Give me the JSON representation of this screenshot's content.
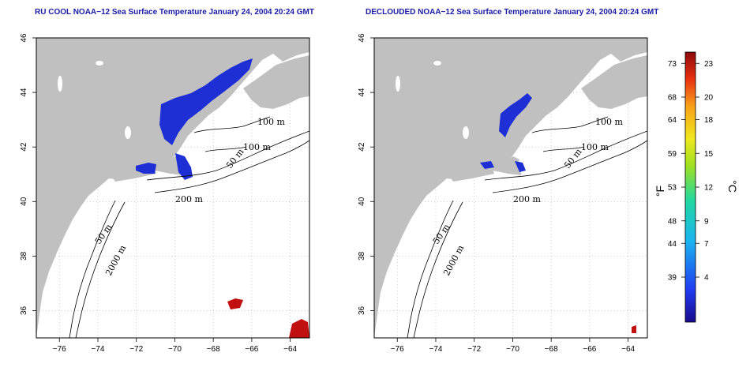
{
  "titles": {
    "left": "RU COOL NOAA−12 Sea Surface Temperature January 24, 2004 20:24 GMT",
    "right": "DECLOUDED NOAA−12 Sea Surface Temperature January 24, 2004 20:24 GMT"
  },
  "axes": {
    "x_ticks": [
      "−76",
      "−74",
      "−72",
      "−70",
      "−68",
      "−66",
      "−64"
    ],
    "x_values": [
      -76,
      -74,
      -72,
      -70,
      -68,
      -66,
      -64
    ],
    "y_ticks": [
      "36",
      "38",
      "40",
      "42",
      "44",
      "46"
    ],
    "y_values": [
      36,
      38,
      40,
      42,
      44,
      46
    ],
    "lon_range": [
      -77.2,
      -63
    ],
    "lat_range": [
      35,
      46
    ]
  },
  "contour_labels": {
    "left": [
      "100 m",
      "100 m",
      "50 m",
      "200 m",
      "50 m",
      "2000 m"
    ],
    "right": [
      "100 m",
      "100 m",
      "50 m",
      "200 m",
      "50 m",
      "2000 m"
    ]
  },
  "colorbar": {
    "fahrenheit_label": "°F",
    "celsius_label": "°C",
    "fahrenheit_ticks": [
      "73",
      "68",
      "64",
      "59",
      "53",
      "48",
      "44",
      "39"
    ],
    "celsius_ticks": [
      "23",
      "20",
      "18",
      "15",
      "12",
      "9",
      "7",
      "4"
    ],
    "celsius_values": [
      23,
      20,
      18,
      15,
      12,
      9,
      7,
      4
    ],
    "range_c": [
      0,
      24
    ]
  },
  "colors": {
    "land": "#c0c0c0",
    "ocean": "#ffffff",
    "title": "#1a1aa6",
    "cold_water": "#1f2fd6",
    "warm_water": "#c01010"
  }
}
